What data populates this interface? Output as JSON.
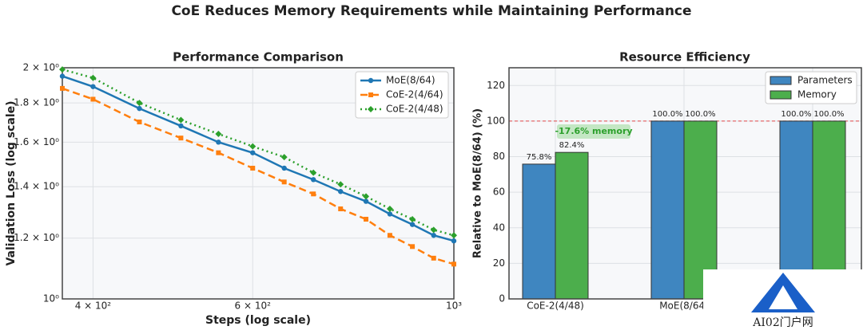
{
  "title": "CoE Reduces Memory Requirements while Maintaining Performance",
  "watermark": "AI02门户网",
  "chart_data": [
    {
      "type": "line",
      "title": "Performance Comparison",
      "xlabel": "Steps (log scale)",
      "ylabel": "Validation Loss (log scale)",
      "xlog": true,
      "ylog": true,
      "grid": true,
      "legend": "upper right",
      "x": [
        370,
        400,
        450,
        500,
        550,
        600,
        650,
        700,
        750,
        800,
        850,
        900,
        950,
        1000
      ],
      "series": [
        {
          "name": "MoE(8/64)",
          "color": "#1f77b4",
          "style": "solid",
          "marker": "circle",
          "values": [
            1.95,
            1.89,
            1.77,
            1.68,
            1.6,
            1.55,
            1.48,
            1.43,
            1.38,
            1.34,
            1.29,
            1.25,
            1.21,
            1.19
          ]
        },
        {
          "name": "CoE-2(4/64)",
          "color": "#ff7f0e",
          "style": "dashed",
          "marker": "square",
          "values": [
            1.88,
            1.82,
            1.7,
            1.62,
            1.55,
            1.48,
            1.42,
            1.37,
            1.31,
            1.27,
            1.21,
            1.17,
            1.13,
            1.11
          ]
        },
        {
          "name": "CoE-2(4/48)",
          "color": "#2ca02c",
          "style": "dotted",
          "marker": "diamond",
          "values": [
            1.99,
            1.94,
            1.8,
            1.71,
            1.64,
            1.58,
            1.53,
            1.46,
            1.41,
            1.36,
            1.31,
            1.27,
            1.23,
            1.21
          ]
        }
      ],
      "xlim": [
        370,
        1000
      ],
      "xticks": [
        {
          "value": 400,
          "label": "4 × 10²"
        },
        {
          "value": 600,
          "label": "6 × 10²"
        },
        {
          "value": 1000,
          "label": "10³"
        }
      ],
      "ylim": [
        1,
        2
      ],
      "yticks": [
        {
          "value": 1,
          "label": "10⁰"
        },
        {
          "value": 1.2,
          "label": "1.2 × 10⁰"
        },
        {
          "value": 1.4,
          "label": "1.4 × 10⁰"
        },
        {
          "value": 1.6,
          "label": "1.6 × 10⁰"
        },
        {
          "value": 1.8,
          "label": "1.8 × 10⁰"
        },
        {
          "value": 2,
          "label": "2 × 10⁰"
        }
      ]
    },
    {
      "type": "bar",
      "title": "Resource Efficiency",
      "ylabel": "Relative to MoE(8/64) (%)",
      "grid": true,
      "legend": "upper right",
      "categories": [
        "CoE-2(4/48)",
        "MoE(8/64)",
        null
      ],
      "series": [
        {
          "name": "Parameters",
          "color": "#3f86c0",
          "values": [
            75.8,
            100,
            100
          ],
          "value_labels": [
            "75.8%",
            "100.0%",
            "100.0%"
          ]
        },
        {
          "name": "Memory",
          "color": "#4cae4c",
          "values": [
            82.4,
            100,
            100
          ],
          "value_labels": [
            "82.4%",
            "100.0%",
            "100.0%"
          ]
        }
      ],
      "reference_line": 100,
      "annotation": "-17.6% memory",
      "ylim": [
        0,
        130
      ],
      "yticks": [
        0,
        20,
        40,
        60,
        80,
        100,
        120
      ]
    }
  ]
}
